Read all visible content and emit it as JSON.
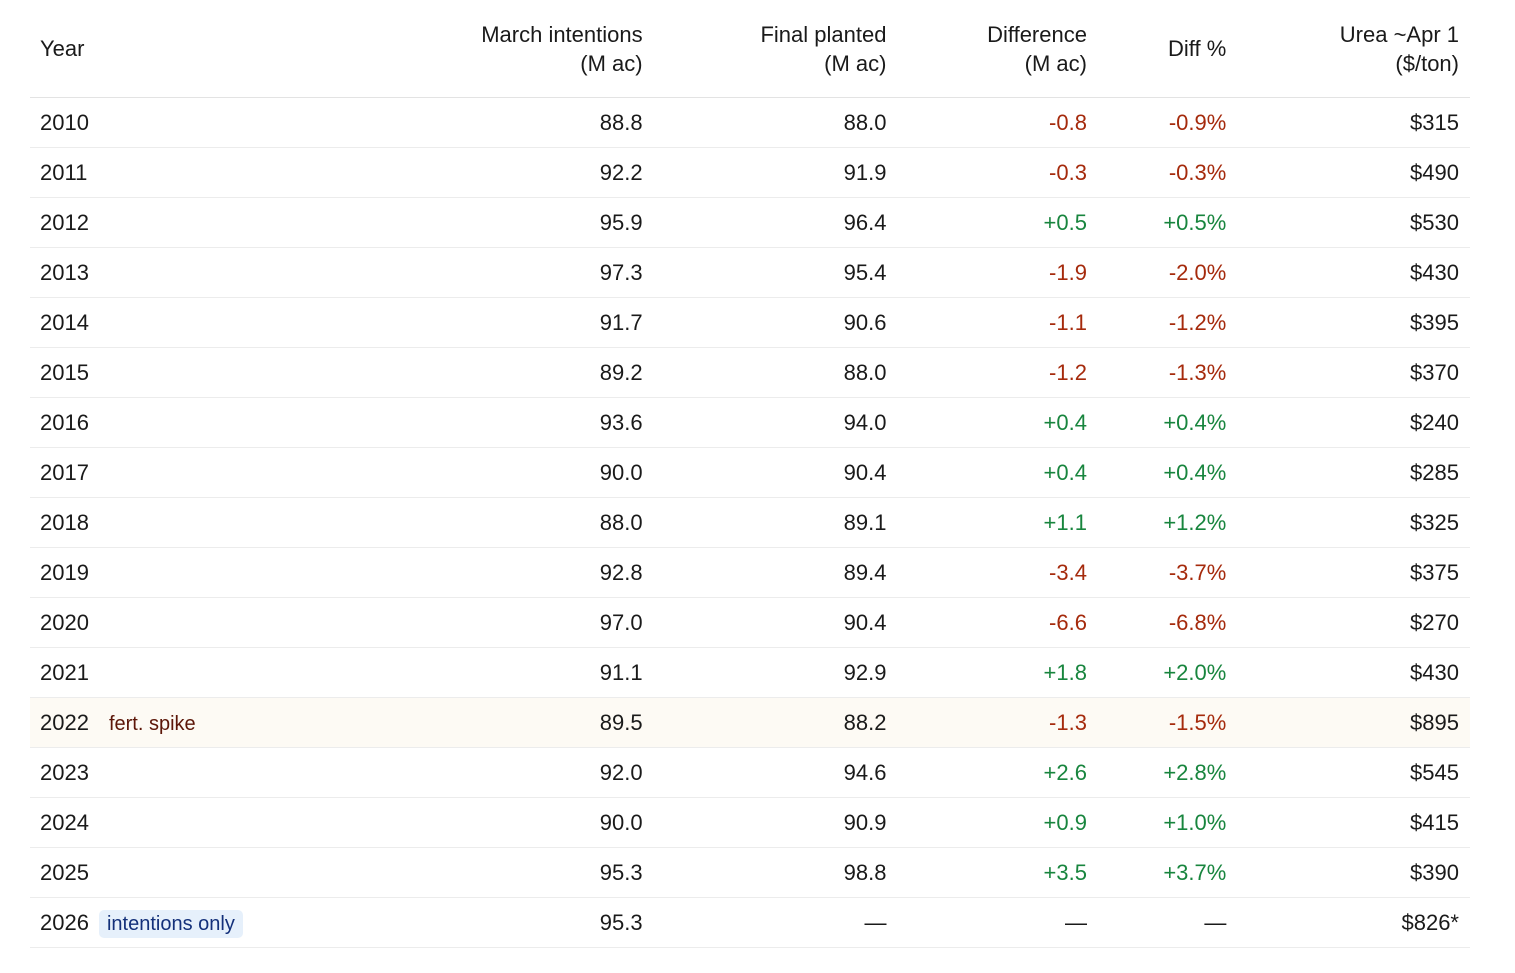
{
  "table": {
    "columns": [
      {
        "label": "Year"
      },
      {
        "label": "March intentions",
        "unit": "(M ac)"
      },
      {
        "label": "Final planted",
        "unit": "(M ac)"
      },
      {
        "label": "Difference",
        "unit": "(M ac)"
      },
      {
        "label": "Diff %"
      },
      {
        "label": "Urea ~Apr 1",
        "unit": "($/ton)"
      }
    ],
    "rows": [
      {
        "cells": [
          "2010",
          "88.8",
          "88.0",
          "-0.8",
          "-0.9%",
          "$315"
        ]
      },
      {
        "cells": [
          "2011",
          "92.2",
          "91.9",
          "-0.3",
          "-0.3%",
          "$490"
        ]
      },
      {
        "cells": [
          "2012",
          "95.9",
          "96.4",
          "+0.5",
          "+0.5%",
          "$530"
        ]
      },
      {
        "cells": [
          "2013",
          "97.3",
          "95.4",
          "-1.9",
          "-2.0%",
          "$430"
        ]
      },
      {
        "cells": [
          "2014",
          "91.7",
          "90.6",
          "-1.1",
          "-1.2%",
          "$395"
        ]
      },
      {
        "cells": [
          "2015",
          "89.2",
          "88.0",
          "-1.2",
          "-1.3%",
          "$370"
        ]
      },
      {
        "cells": [
          "2016",
          "93.6",
          "94.0",
          "+0.4",
          "+0.4%",
          "$240"
        ]
      },
      {
        "cells": [
          "2017",
          "90.0",
          "90.4",
          "+0.4",
          "+0.4%",
          "$285"
        ]
      },
      {
        "cells": [
          "2018",
          "88.0",
          "89.1",
          "+1.1",
          "+1.2%",
          "$325"
        ]
      },
      {
        "cells": [
          "2019",
          "92.8",
          "89.4",
          "-3.4",
          "-3.7%",
          "$375"
        ]
      },
      {
        "cells": [
          "2020",
          "97.0",
          "90.4",
          "-6.6",
          "-6.8%",
          "$270"
        ]
      },
      {
        "cells": [
          "2021",
          "91.1",
          "92.9",
          "+1.8",
          "+2.0%",
          "$430"
        ]
      },
      {
        "cells": [
          "2022",
          "89.5",
          "88.2",
          "-1.3",
          "-1.5%",
          "$895"
        ],
        "tag": "fert. spike"
      },
      {
        "cells": [
          "2023",
          "92.0",
          "94.6",
          "+2.6",
          "+2.8%",
          "$545"
        ]
      },
      {
        "cells": [
          "2024",
          "90.0",
          "90.9",
          "+0.9",
          "+1.0%",
          "$415"
        ]
      },
      {
        "cells": [
          "2025",
          "95.3",
          "98.8",
          "+3.5",
          "+3.7%",
          "$390"
        ]
      },
      {
        "cells": [
          "2026",
          "95.3",
          "—",
          "—",
          "—",
          "$826*"
        ],
        "tag": "intentions only"
      }
    ]
  }
}
